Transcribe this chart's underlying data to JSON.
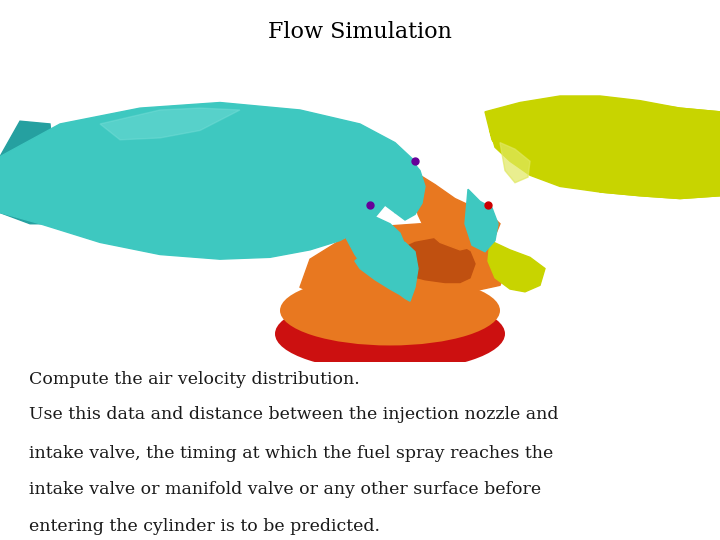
{
  "title": "Flow Simulation",
  "title_fontsize": 16,
  "title_color": "#000000",
  "background_color": "#ffffff",
  "text_block": [
    "Compute the air velocity distribution.",
    "Use this data and distance between the injection nozzle and",
    "intake valve, the timing at which the fuel spray reaches the",
    "intake valve or manifold valve or any other surface before",
    "entering the cylinder is to be predicted."
  ],
  "text_fontsize": 12.5,
  "text_color": "#1a1a1a",
  "teal": "#3ec8c0",
  "teal_dark": "#25a0a0",
  "teal_light": "#7de0da",
  "yellow": "#c8d400",
  "yellow_light": "#e0e860",
  "orange": "#e87820",
  "orange_dark": "#c05010",
  "red": "#cc1010",
  "purple": "#660099",
  "red_dot": "#cc0000"
}
